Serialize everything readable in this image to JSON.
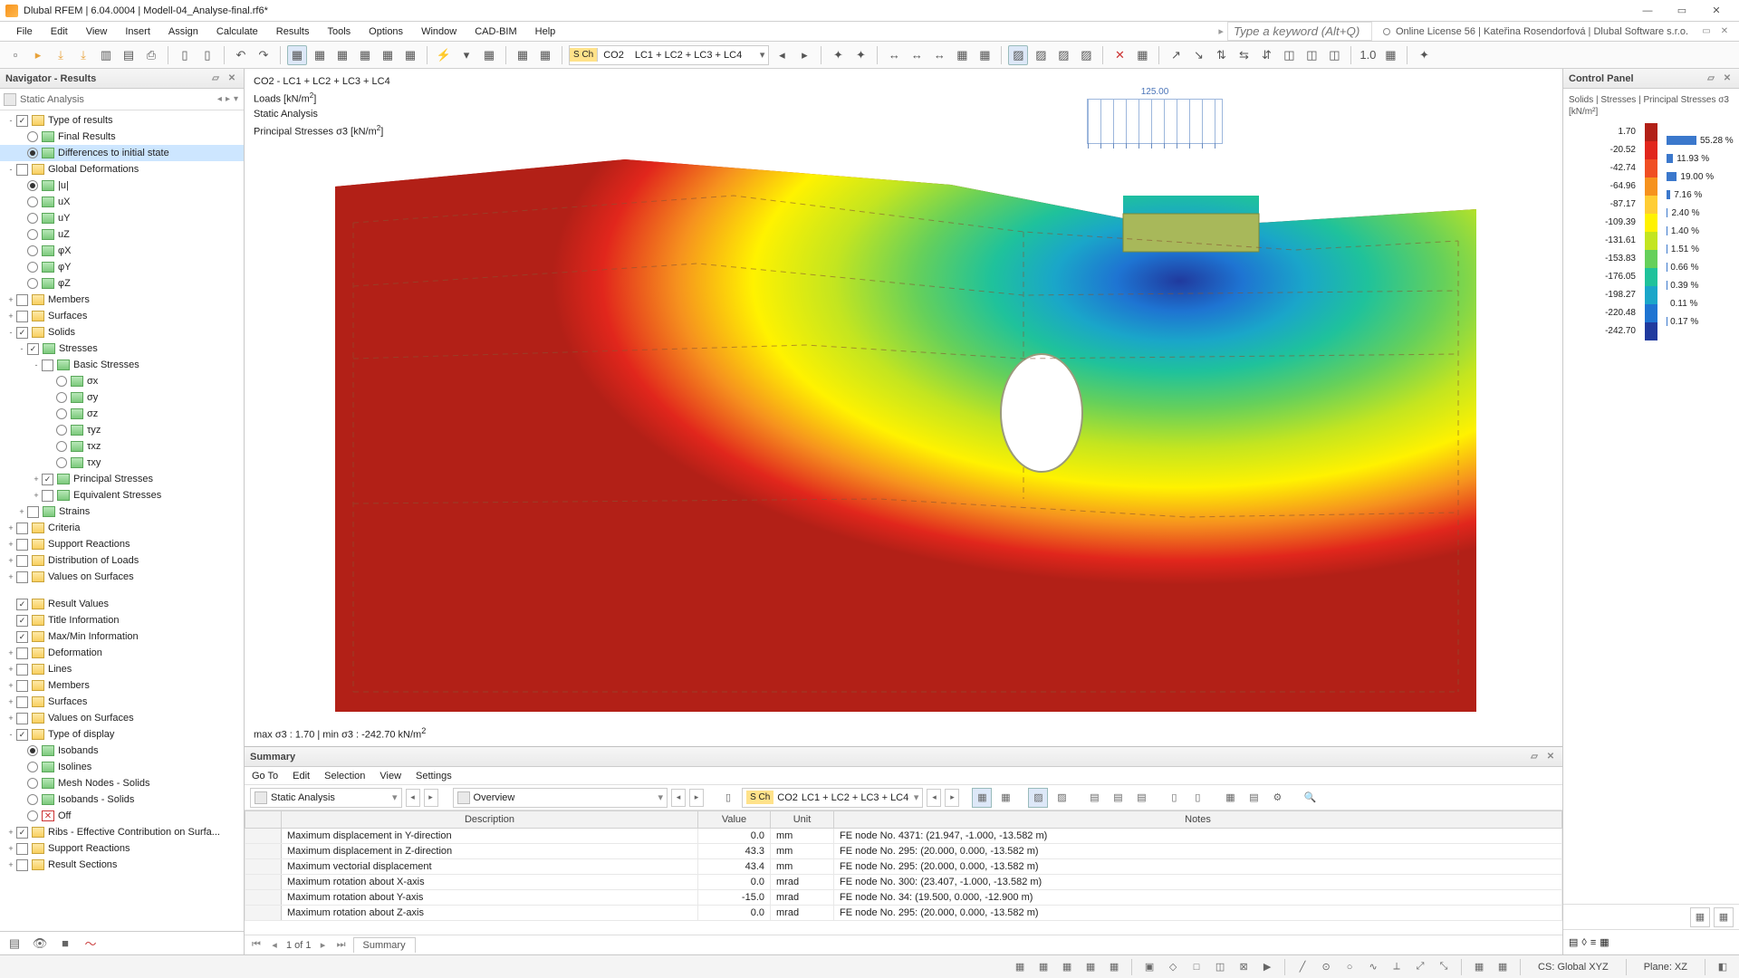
{
  "title": "Dlubal RFEM | 6.04.0004 | Modell-04_Analyse-final.rf6*",
  "menus": [
    "File",
    "Edit",
    "View",
    "Insert",
    "Assign",
    "Calculate",
    "Results",
    "Tools",
    "Options",
    "Window",
    "CAD-BIM",
    "Help"
  ],
  "search_placeholder": "Type a keyword (Alt+Q)",
  "license": "Online License 56 | Kateřina Rosendorfová | Dlubal Software s.r.o.",
  "lc_tag": "S Ch",
  "lc_sel": "CO2",
  "lc_combo": "LC1 + LC2 + LC3 + LC4",
  "nav": {
    "title": "Navigator - Results",
    "combo": "Static Analysis",
    "tree": [
      {
        "ind": 0,
        "exp": "-",
        "chk": true,
        "ic": "folder",
        "lbl": "Type of results"
      },
      {
        "ind": 1,
        "radio": false,
        "ic": "res",
        "lbl": "Final Results"
      },
      {
        "ind": 1,
        "radio": true,
        "ic": "res",
        "lbl": "Differences to initial state",
        "sel": true
      },
      {
        "ind": 0,
        "exp": "-",
        "chk": false,
        "ic": "folder",
        "lbl": "Global Deformations"
      },
      {
        "ind": 1,
        "radio": true,
        "ic": "res",
        "lbl": "|u|"
      },
      {
        "ind": 1,
        "radio": false,
        "ic": "res",
        "lbl": "uX"
      },
      {
        "ind": 1,
        "radio": false,
        "ic": "res",
        "lbl": "uY"
      },
      {
        "ind": 1,
        "radio": false,
        "ic": "res",
        "lbl": "uZ"
      },
      {
        "ind": 1,
        "radio": false,
        "ic": "res",
        "lbl": "φX"
      },
      {
        "ind": 1,
        "radio": false,
        "ic": "res",
        "lbl": "φY"
      },
      {
        "ind": 1,
        "radio": false,
        "ic": "res",
        "lbl": "φZ"
      },
      {
        "ind": 0,
        "exp": "+",
        "chk": false,
        "ic": "folder",
        "lbl": "Members"
      },
      {
        "ind": 0,
        "exp": "+",
        "chk": false,
        "ic": "folder",
        "lbl": "Surfaces"
      },
      {
        "ind": 0,
        "exp": "-",
        "chk": true,
        "ic": "folder",
        "lbl": "Solids"
      },
      {
        "ind": 1,
        "exp": "-",
        "chk": true,
        "ic": "res",
        "lbl": "Stresses"
      },
      {
        "ind": 2,
        "exp": "-",
        "chk": false,
        "ic": "res",
        "lbl": "Basic Stresses"
      },
      {
        "ind": 3,
        "radio": false,
        "ic": "res",
        "lbl": "σx"
      },
      {
        "ind": 3,
        "radio": false,
        "ic": "res",
        "lbl": "σy"
      },
      {
        "ind": 3,
        "radio": false,
        "ic": "res",
        "lbl": "σz"
      },
      {
        "ind": 3,
        "radio": false,
        "ic": "res",
        "lbl": "τyz"
      },
      {
        "ind": 3,
        "radio": false,
        "ic": "res",
        "lbl": "τxz"
      },
      {
        "ind": 3,
        "radio": false,
        "ic": "res",
        "lbl": "τxy"
      },
      {
        "ind": 2,
        "exp": "+",
        "chk": true,
        "ic": "res",
        "lbl": "Principal Stresses"
      },
      {
        "ind": 2,
        "exp": "+",
        "chk": false,
        "ic": "res",
        "lbl": "Equivalent Stresses"
      },
      {
        "ind": 1,
        "exp": "+",
        "chk": false,
        "ic": "res",
        "lbl": "Strains"
      },
      {
        "ind": 0,
        "exp": "+",
        "chk": false,
        "ic": "folder",
        "lbl": "Criteria"
      },
      {
        "ind": 0,
        "exp": "+",
        "chk": false,
        "ic": "folder",
        "lbl": "Support Reactions"
      },
      {
        "ind": 0,
        "exp": "+",
        "chk": false,
        "ic": "folder",
        "lbl": "Distribution of Loads"
      },
      {
        "ind": 0,
        "exp": "+",
        "chk": false,
        "ic": "folder",
        "lbl": "Values on Surfaces"
      },
      {
        "gap": true
      },
      {
        "ind": 0,
        "exp": "",
        "chk": true,
        "ic": "folder",
        "lbl": "Result Values"
      },
      {
        "ind": 0,
        "exp": "",
        "chk": true,
        "ic": "folder",
        "lbl": "Title Information"
      },
      {
        "ind": 0,
        "exp": "",
        "chk": true,
        "ic": "folder",
        "lbl": "Max/Min Information"
      },
      {
        "ind": 0,
        "exp": "+",
        "chk": false,
        "ic": "folder",
        "lbl": "Deformation"
      },
      {
        "ind": 0,
        "exp": "+",
        "chk": false,
        "ic": "folder",
        "lbl": "Lines"
      },
      {
        "ind": 0,
        "exp": "+",
        "chk": false,
        "ic": "folder",
        "lbl": "Members"
      },
      {
        "ind": 0,
        "exp": "+",
        "chk": false,
        "ic": "folder",
        "lbl": "Surfaces"
      },
      {
        "ind": 0,
        "exp": "+",
        "chk": false,
        "ic": "folder",
        "lbl": "Values on Surfaces"
      },
      {
        "ind": 0,
        "exp": "-",
        "chk": true,
        "ic": "folder",
        "lbl": "Type of display"
      },
      {
        "ind": 1,
        "radio": true,
        "ic": "res",
        "lbl": "Isobands"
      },
      {
        "ind": 1,
        "radio": false,
        "ic": "res",
        "lbl": "Isolines"
      },
      {
        "ind": 1,
        "radio": false,
        "ic": "res",
        "lbl": "Mesh Nodes - Solids"
      },
      {
        "ind": 1,
        "radio": false,
        "ic": "res",
        "lbl": "Isobands - Solids"
      },
      {
        "ind": 1,
        "radio": false,
        "ic": "off",
        "lbl": "Off"
      },
      {
        "ind": 0,
        "exp": "+",
        "chk": true,
        "ic": "folder",
        "lbl": "Ribs - Effective Contribution on Surfa..."
      },
      {
        "ind": 0,
        "exp": "+",
        "chk": false,
        "ic": "folder",
        "lbl": "Support Reactions"
      },
      {
        "ind": 0,
        "exp": "+",
        "chk": false,
        "ic": "folder",
        "lbl": "Result Sections"
      }
    ]
  },
  "viewport": {
    "l1": "CO2 - LC1 + LC2 + LC3 + LC4",
    "l2_a": "Loads [kN/m",
    "l2_b": "]",
    "l3": "Static Analysis",
    "l4_a": "Principal Stresses σ3 [kN/m",
    "l4_b": "]",
    "load_value": "125.00",
    "maxmin_a": "max σ3 : 1.70 | min σ3 : -242.70 kN/m"
  },
  "summary": {
    "title": "Summary",
    "menus": [
      "Go To",
      "Edit",
      "Selection",
      "View",
      "Settings"
    ],
    "analysis": "Static Analysis",
    "overview": "Overview",
    "lc_tag": "S Ch",
    "lc_sel": "CO2",
    "lc_combo": "LC1 + LC2 + LC3 + LC4",
    "cols": [
      "",
      "Description",
      "Value",
      "Unit",
      "Notes"
    ],
    "rows": [
      [
        "",
        "Maximum displacement in Y-direction",
        "0.0",
        "mm",
        "FE node No. 4371: (21.947, -1.000, -13.582 m)"
      ],
      [
        "",
        "Maximum displacement in Z-direction",
        "43.3",
        "mm",
        "FE node No. 295: (20.000, 0.000, -13.582 m)"
      ],
      [
        "",
        "Maximum vectorial displacement",
        "43.4",
        "mm",
        "FE node No. 295: (20.000, 0.000, -13.582 m)"
      ],
      [
        "",
        "Maximum rotation about X-axis",
        "0.0",
        "mrad",
        "FE node No. 300: (23.407, -1.000, -13.582 m)"
      ],
      [
        "",
        "Maximum rotation about Y-axis",
        "-15.0",
        "mrad",
        "FE node No. 34: (19.500, 0.000, -12.900 m)"
      ],
      [
        "",
        "Maximum rotation about Z-axis",
        "0.0",
        "mrad",
        "FE node No. 295: (20.000, 0.000, -13.582 m)"
      ]
    ],
    "pager": "1 of 1",
    "tab": "Summary"
  },
  "control": {
    "title": "Control Panel",
    "sub": "Solids | Stresses | Principal Stresses σ3 [kN/m²]",
    "legend": {
      "values": [
        "1.70",
        "-20.52",
        "-42.74",
        "-64.96",
        "-87.17",
        "-109.39",
        "-131.61",
        "-153.83",
        "-176.05",
        "-198.27",
        "-220.48",
        "-242.70"
      ],
      "colors": [
        "#b22017",
        "#e1261c",
        "#f04e23",
        "#f6921e",
        "#ffcd34",
        "#fff200",
        "#c3e520",
        "#65d05b",
        "#1fc29b",
        "#1aa6c9",
        "#1e74d2",
        "#203a9e"
      ],
      "pct": [
        "55.28 %",
        "11.93 %",
        "19.00 %",
        "7.16 %",
        "2.40 %",
        "1.40 %",
        "1.51 %",
        "0.66 %",
        "0.39 %",
        "0.11 %",
        "0.17 %"
      ],
      "pct_bars": [
        55,
        12,
        19,
        7,
        2.4,
        1.4,
        1.5,
        0.7,
        0.4,
        0.1,
        0.2
      ]
    }
  },
  "status": {
    "cs": "CS: Global XYZ",
    "plane": "Plane: XZ"
  }
}
